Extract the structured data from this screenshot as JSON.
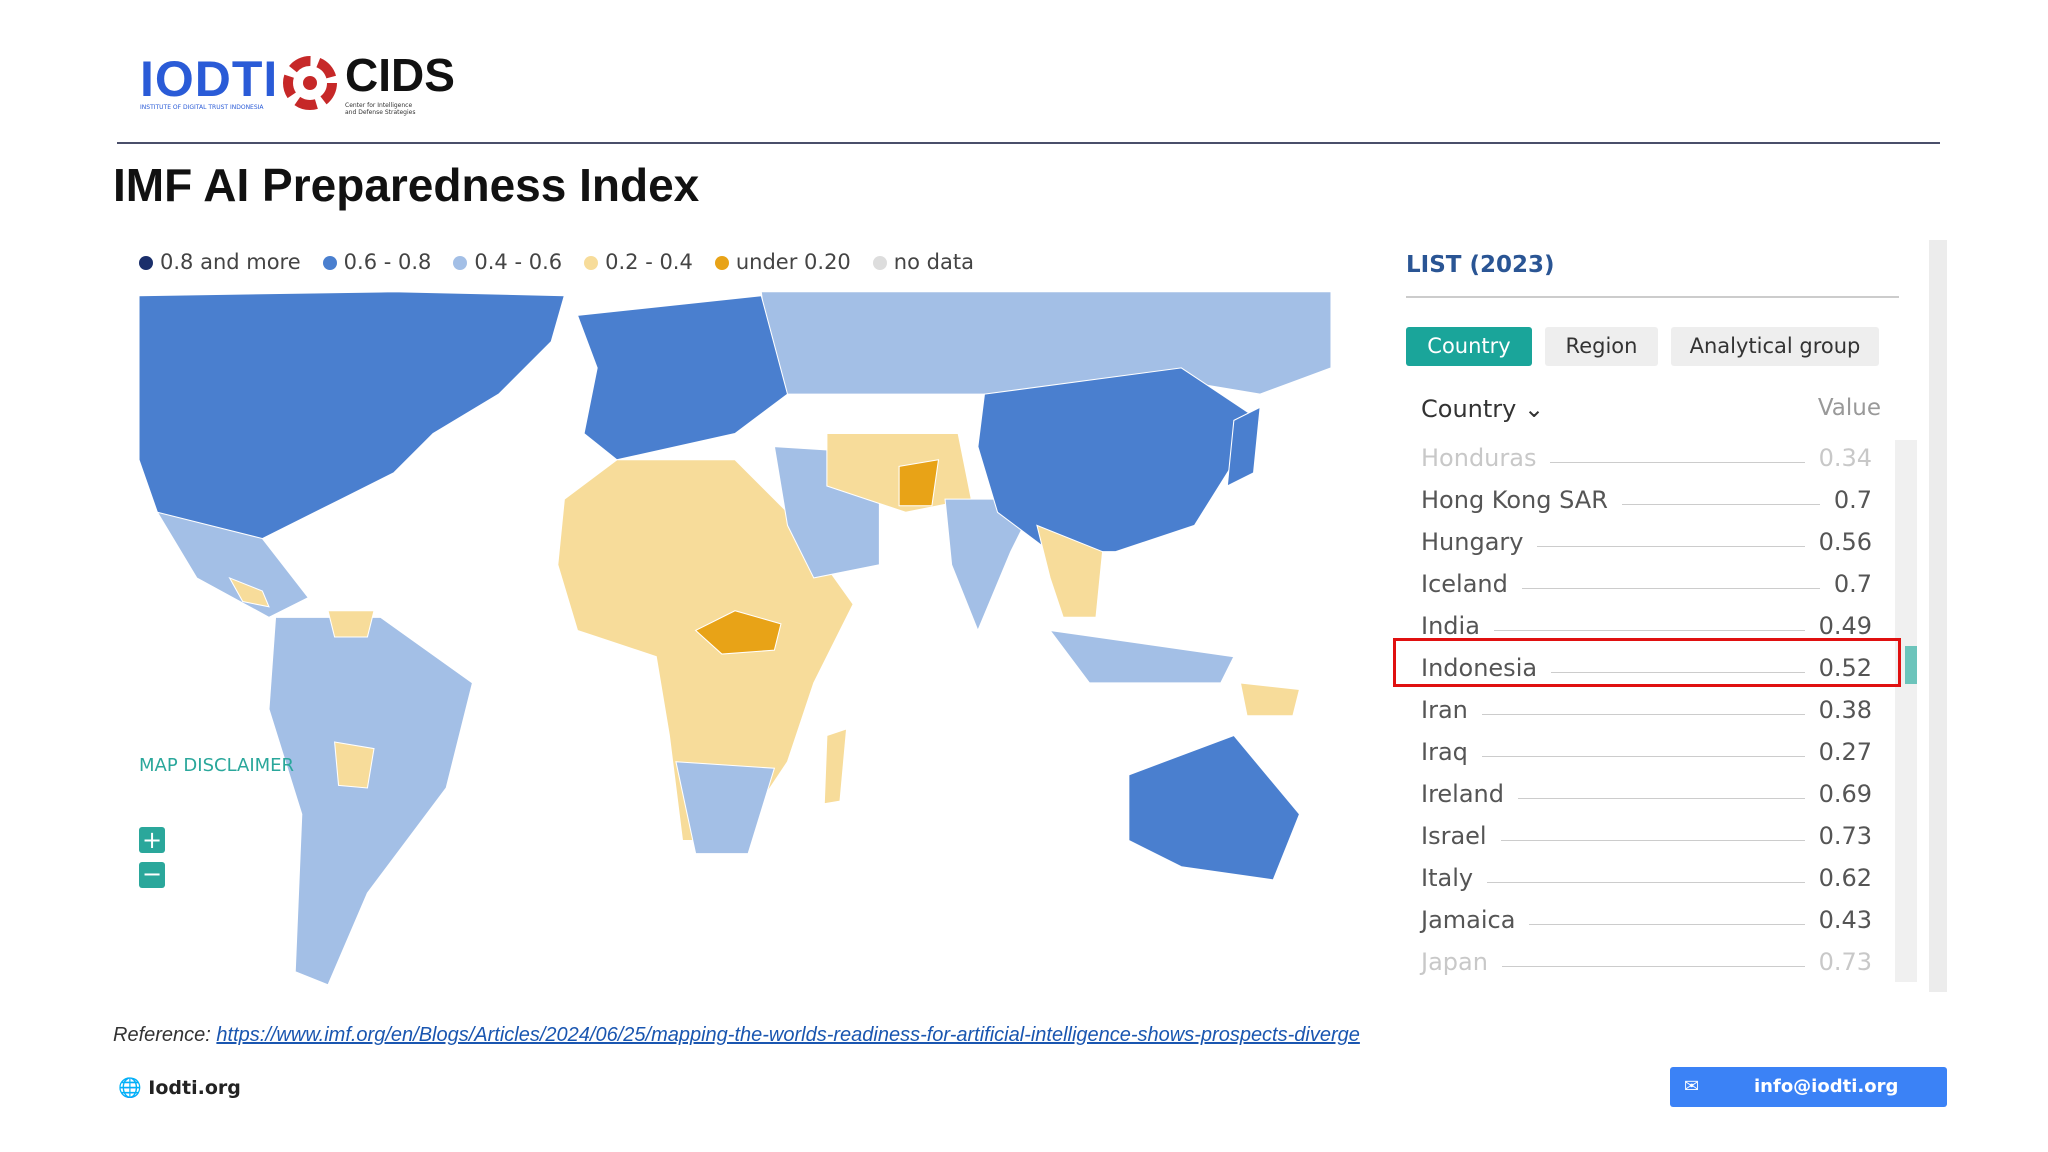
{
  "header": {
    "logo_left": "IODTI",
    "logo_left_sub": "INSTITUTE OF DIGITAL TRUST INDONESIA",
    "logo_right": "CIDS",
    "logo_right_sub": "Center for Intelligence and Defense Strategies"
  },
  "title": "IMF AI Preparedness Index",
  "legend": [
    "0.8 and more",
    "0.6 - 0.8",
    "0.4 - 0.6",
    "0.2 - 0.4",
    "under 0.20",
    "no data"
  ],
  "map": {
    "disclaimer": "MAP DISCLAIMER"
  },
  "list": {
    "title": "LIST (2023)",
    "tabs": [
      "Country",
      "Region",
      "Analytical group"
    ],
    "columns": [
      "Country",
      "Value"
    ],
    "rows": [
      [
        "Honduras",
        0.34
      ],
      [
        "Hong Kong SAR",
        0.7
      ],
      [
        "Hungary",
        0.56
      ],
      [
        "Iceland",
        0.7
      ],
      [
        "India",
        0.49
      ],
      [
        "Indonesia",
        0.52
      ],
      [
        "Iran",
        0.38
      ],
      [
        "Iraq",
        0.27
      ],
      [
        "Ireland",
        0.69
      ],
      [
        "Israel",
        0.73
      ],
      [
        "Italy",
        0.62
      ],
      [
        "Jamaica",
        0.43
      ],
      [
        "Japan",
        0.73
      ]
    ]
  },
  "reference": {
    "label": "Reference:",
    "url": "https://www.imf.org/en/Blogs/Articles/2024/06/25/mapping-the-worlds-readiness-for-artificial-intelligence-shows-prospects-diverge"
  },
  "footer": {
    "website": "Iodti.org",
    "email": "info@iodti.org"
  }
}
